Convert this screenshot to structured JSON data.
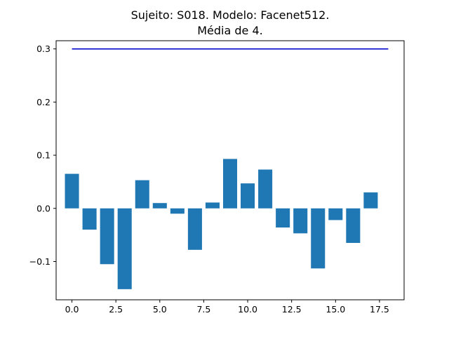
{
  "chart_data": {
    "type": "bar",
    "title_lines": [
      "Sujeito: S018. Modelo: Facenet512.",
      "Média de 4."
    ],
    "xlabel": "",
    "ylabel": "",
    "x": [
      0,
      1,
      2,
      3,
      4,
      5,
      6,
      7,
      8,
      9,
      10,
      11,
      12,
      13,
      14,
      15,
      16,
      17
    ],
    "values": [
      0.065,
      -0.04,
      -0.105,
      -0.152,
      0.053,
      0.01,
      -0.01,
      -0.078,
      0.011,
      0.093,
      0.047,
      0.073,
      -0.036,
      -0.047,
      -0.113,
      -0.022,
      -0.065,
      0.03
    ],
    "bar_color": "#1f77b4",
    "xlim": [
      -0.9,
      18.9
    ],
    "ylim": [
      -0.172,
      0.3154
    ],
    "xticks": [
      0.0,
      2.5,
      5.0,
      7.5,
      10.0,
      12.5,
      15.0,
      17.5
    ],
    "xtick_labels": [
      "0.0",
      "2.5",
      "5.0",
      "7.5",
      "10.0",
      "12.5",
      "15.0",
      "17.5"
    ],
    "yticks": [
      -0.1,
      0.0,
      0.1,
      0.2,
      0.3
    ],
    "ytick_labels": [
      "−0.1",
      "0.0",
      "0.1",
      "0.2",
      "0.3"
    ],
    "reference_line": {
      "y": 0.3,
      "x_start": 0,
      "x_end": 18,
      "color": "#0000cd"
    },
    "grid": false,
    "legend": "none"
  }
}
